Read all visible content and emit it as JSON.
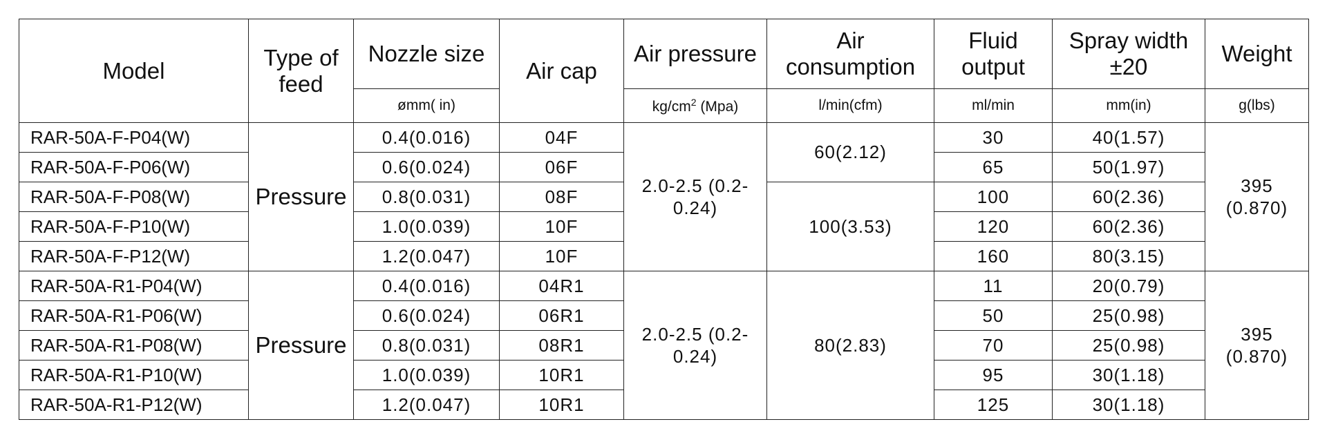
{
  "table": {
    "columns": [
      {
        "title": "Model"
      },
      {
        "title": "Type of feed"
      },
      {
        "title": "Nozzle size",
        "unit": "ømm( in)"
      },
      {
        "title": "Air cap"
      },
      {
        "title": "Air pressure",
        "unit": "kg/cm",
        "unit_sup": "2",
        "unit_after": " (Mpa)"
      },
      {
        "title": "Air consumption",
        "unit": "l/min(cfm)"
      },
      {
        "title": "Fluid output",
        "unit": "ml/min"
      },
      {
        "title": "Spray width ±20",
        "unit": "mm(in)"
      },
      {
        "title": "Weight",
        "unit": "g(lbs)"
      }
    ],
    "groups": [
      {
        "feed": "Pressure",
        "pressure": "2.0-2.5 (0.2-0.24)",
        "weight": "395 (0.870)",
        "blocks": [
          {
            "consumption": "60(2.12)",
            "rows": [
              [
                "RAR-50A-F-P04(W)",
                "0.4(0.016)",
                "04F",
                "30",
                "40(1.57)"
              ],
              [
                "RAR-50A-F-P06(W)",
                "0.6(0.024)",
                "06F",
                "65",
                "50(1.97)"
              ]
            ]
          },
          {
            "consumption": "100(3.53)",
            "rows": [
              [
                "RAR-50A-F-P08(W)",
                "0.8(0.031)",
                "08F",
                "100",
                "60(2.36)"
              ],
              [
                "RAR-50A-F-P10(W)",
                "1.0(0.039)",
                "10F",
                "120",
                "60(2.36)"
              ],
              [
                "RAR-50A-F-P12(W)",
                "1.2(0.047)",
                "10F",
                "160",
                "80(3.15)"
              ]
            ]
          }
        ]
      },
      {
        "feed": "Pressure",
        "pressure": "2.0-2.5 (0.2-0.24)",
        "weight": "395 (0.870)",
        "blocks": [
          {
            "consumption": "80(2.83)",
            "rows": [
              [
                "RAR-50A-R1-P04(W)",
                "0.4(0.016)",
                "04R1",
                "11",
                "20(0.79)"
              ],
              [
                "RAR-50A-R1-P06(W)",
                "0.6(0.024)",
                "06R1",
                "50",
                "25(0.98)"
              ],
              [
                "RAR-50A-R1-P08(W)",
                "0.8(0.031)",
                "08R1",
                "70",
                "25(0.98)"
              ],
              [
                "RAR-50A-R1-P10(W)",
                "1.0(0.039)",
                "10R1",
                "95",
                "30(1.18)"
              ],
              [
                "RAR-50A-R1-P12(W)",
                "1.2(0.047)",
                "10R1",
                "125",
                "30(1.18)"
              ]
            ]
          }
        ]
      }
    ]
  }
}
